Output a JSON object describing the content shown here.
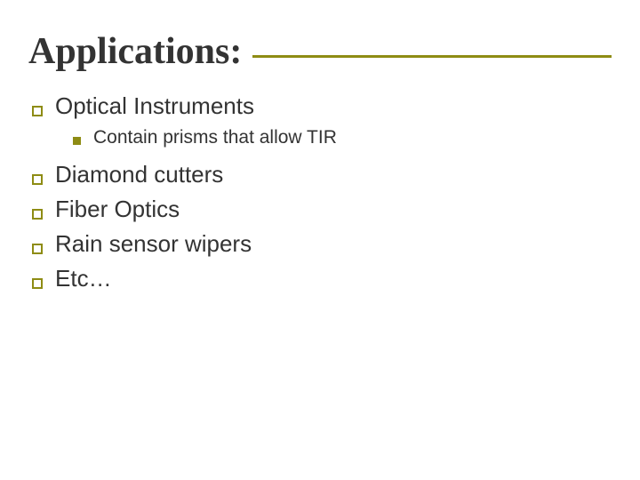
{
  "title": "Applications:",
  "colors": {
    "accent": "#8e8c14",
    "text": "#333333",
    "underline": "#8e8c14",
    "background": "#ffffff"
  },
  "typography": {
    "title_family": "Times New Roman",
    "title_size_pt": 32,
    "title_weight": "bold",
    "body_family": "Verdana",
    "l1_size_pt": 20,
    "l2_size_pt": 16
  },
  "items": [
    {
      "label": "Optical Instruments",
      "children": [
        {
          "label": "Contain prisms that allow TIR"
        }
      ]
    },
    {
      "label": "Diamond cutters"
    },
    {
      "label": "Fiber Optics"
    },
    {
      "label": "Rain sensor wipers"
    },
    {
      "label": "Etc…"
    }
  ]
}
